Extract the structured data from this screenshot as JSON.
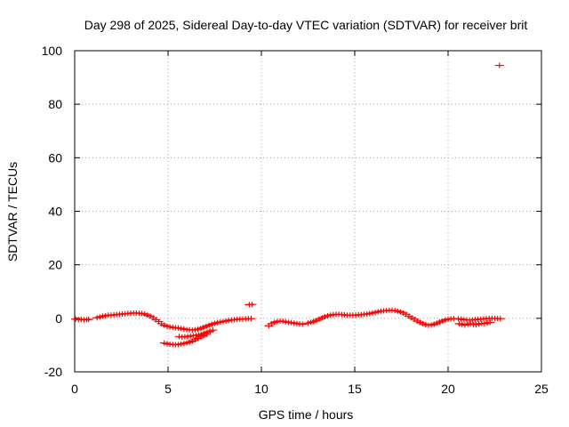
{
  "chart_data": {
    "type": "scatter",
    "title": "Day 298 of 2025, Sidereal Day-to-day VTEC variation (SDTVAR) for receiver brit",
    "xlabel": "GPS time / hours",
    "ylabel": "SDTVAR / TECUs",
    "xlim": [
      0,
      25
    ],
    "ylim": [
      -20,
      100
    ],
    "xticks": [
      0,
      5,
      10,
      15,
      20,
      25
    ],
    "yticks": [
      -20,
      0,
      20,
      40,
      60,
      80,
      100
    ],
    "xtick_labels": [
      "0",
      "5",
      "10",
      "15",
      "20",
      "25"
    ],
    "ytick_labels": [
      "-20",
      "0",
      "20",
      "40",
      "60",
      "80",
      "100"
    ],
    "grid": true,
    "series": [
      {
        "name": "SDTVAR",
        "color": "#ff0000",
        "marker": "plus",
        "x": [
          0.05,
          0.2,
          0.35,
          0.5,
          0.65,
          0.75,
          1.2,
          1.35,
          1.5,
          1.65,
          1.8,
          1.95,
          2.1,
          2.25,
          2.4,
          2.55,
          2.7,
          2.85,
          3.0,
          3.15,
          3.3,
          3.45,
          3.6,
          3.75,
          3.9,
          4.05,
          4.2,
          4.35,
          4.5,
          4.65,
          4.8,
          4.95,
          5.1,
          5.25,
          5.4,
          5.55,
          5.7,
          5.85,
          6.0,
          6.15,
          6.3,
          6.45,
          6.6,
          6.75,
          6.9,
          7.05,
          7.2,
          7.35,
          7.5,
          7.65,
          7.8,
          7.95,
          8.1,
          8.25,
          8.4,
          8.55,
          8.7,
          8.85,
          9.0,
          9.15,
          9.3,
          9.45,
          4.8,
          4.95,
          5.1,
          5.25,
          5.4,
          5.55,
          5.7,
          5.85,
          6.0,
          6.15,
          6.3,
          6.45,
          6.6,
          6.75,
          6.9,
          7.05,
          5.6,
          5.75,
          5.9,
          6.05,
          6.2,
          6.35,
          6.5,
          6.65,
          6.8,
          6.95,
          7.1,
          7.25,
          7.4,
          9.35,
          9.5,
          10.4,
          10.55,
          10.7,
          10.85,
          11.0,
          11.15,
          11.3,
          11.45,
          11.6,
          11.75,
          11.9,
          12.05,
          12.2,
          12.5,
          12.65,
          12.8,
          12.95,
          13.1,
          13.25,
          13.4,
          13.55,
          13.7,
          13.85,
          14.0,
          14.15,
          14.3,
          14.45,
          14.6,
          14.75,
          14.9,
          15.05,
          15.2,
          15.35,
          15.5,
          15.65,
          15.8,
          15.95,
          16.1,
          16.25,
          16.4,
          16.55,
          16.7,
          16.85,
          17.0,
          17.15,
          17.3,
          17.45,
          17.6,
          17.75,
          17.9,
          18.05,
          18.2,
          18.35,
          18.5,
          18.65,
          18.8,
          18.95,
          19.1,
          19.25,
          19.4,
          19.55,
          19.7,
          19.85,
          20.0,
          20.15,
          20.3,
          20.55,
          20.7,
          20.85,
          21.0,
          21.15,
          21.3,
          21.45,
          21.6,
          21.75,
          21.9,
          22.05,
          22.2,
          22.35,
          22.5,
          22.65,
          22.8,
          20.6,
          20.75,
          20.9,
          21.05,
          21.2,
          21.35,
          21.5,
          21.65,
          21.8,
          21.95,
          22.1,
          22.25,
          22.75
        ],
        "y": [
          -0.3,
          -0.5,
          -0.4,
          -0.6,
          -0.5,
          -0.4,
          0.2,
          0.5,
          0.8,
          1.0,
          1.2,
          1.2,
          1.3,
          1.4,
          1.5,
          1.6,
          1.7,
          1.8,
          1.9,
          2.0,
          2.0,
          1.9,
          1.8,
          1.6,
          1.2,
          0.8,
          0.2,
          -0.5,
          -1.2,
          -2.0,
          -2.6,
          -3.0,
          -3.2,
          -3.4,
          -3.5,
          -3.6,
          -3.8,
          -4.0,
          -4.2,
          -4.3,
          -4.4,
          -4.3,
          -4.1,
          -3.8,
          -3.4,
          -3.0,
          -2.6,
          -2.2,
          -1.9,
          -1.6,
          -1.4,
          -1.2,
          -1.0,
          -0.8,
          -0.6,
          -0.5,
          -0.4,
          -0.3,
          -0.3,
          -0.2,
          -0.1,
          -0.1,
          -9.2,
          -9.5,
          -9.7,
          -9.8,
          -9.9,
          -9.8,
          -9.6,
          -9.4,
          -9.2,
          -8.9,
          -8.5,
          -8.0,
          -7.5,
          -7.0,
          -6.5,
          -6.0,
          -6.8,
          -7.0,
          -6.9,
          -6.8,
          -6.6,
          -6.5,
          -6.4,
          -6.2,
          -6.0,
          -5.6,
          -5.2,
          -4.8,
          -4.4,
          5.1,
          5.2,
          -2.8,
          -2.0,
          -1.5,
          -1.2,
          -1.0,
          -1.1,
          -1.3,
          -1.5,
          -1.6,
          -1.8,
          -2.0,
          -2.1,
          -2.2,
          -1.8,
          -1.5,
          -1.2,
          -0.8,
          -0.3,
          0.2,
          0.6,
          1.0,
          1.2,
          1.4,
          1.5,
          1.5,
          1.4,
          1.3,
          1.2,
          1.2,
          1.2,
          1.2,
          1.3,
          1.4,
          1.5,
          1.6,
          1.8,
          2.0,
          2.2,
          2.5,
          2.7,
          2.8,
          2.9,
          3.0,
          3.0,
          2.9,
          2.7,
          2.4,
          2.0,
          1.5,
          0.8,
          0.2,
          -0.4,
          -1.0,
          -1.5,
          -2.0,
          -2.4,
          -2.6,
          -2.5,
          -2.2,
          -1.8,
          -1.4,
          -1.0,
          -0.6,
          -0.3,
          -0.2,
          -0.1,
          -0.2,
          -0.3,
          -0.5,
          -0.6,
          -0.7,
          -0.6,
          -0.5,
          -0.4,
          -0.3,
          -0.2,
          -0.1,
          0.0,
          0.0,
          0.0,
          -0.1,
          -0.1,
          -2.0,
          -2.3,
          -2.5,
          -2.2,
          -2.0,
          -2.3,
          -2.4,
          -2.1,
          -1.9,
          -2.0,
          -1.7,
          -1.5,
          94.5
        ]
      }
    ]
  }
}
